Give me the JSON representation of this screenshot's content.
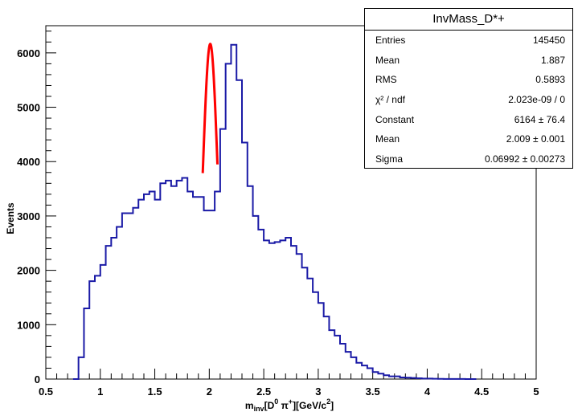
{
  "chart_data": {
    "type": "histogram",
    "title": "",
    "xlabel": "m_inv[D^0 π^+][GeV/c^2]",
    "xlabel_parts": {
      "m": "m",
      "inv": "inv",
      "bracket_open": "[D",
      "d_sup": "0",
      "pi": " π",
      "pi_sup": "+",
      "rest": "][GeV/c",
      "c_sup": "2",
      "close": "]"
    },
    "ylabel": "Events",
    "xlim": [
      0.5,
      5
    ],
    "ylim": [
      0,
      6500
    ],
    "x_ticks": [
      0.5,
      1,
      1.5,
      2,
      2.5,
      3,
      3.5,
      4,
      4.5,
      5
    ],
    "x_tick_labels": [
      "0.5",
      "1",
      "1.5",
      "2",
      "2.5",
      "3",
      "3.5",
      "4",
      "4.5",
      "5"
    ],
    "y_ticks": [
      0,
      1000,
      2000,
      3000,
      4000,
      5000,
      6000
    ],
    "y_tick_labels": [
      "0",
      "1000",
      "2000",
      "3000",
      "4000",
      "5000",
      "6000"
    ],
    "histogram": {
      "name": "InvMass_D*+",
      "color": "#1a1aa6",
      "bin_width": 0.05,
      "first_bin_low": 0.75,
      "counts": [
        0,
        400,
        1300,
        1800,
        1900,
        2100,
        2450,
        2600,
        2800,
        3050,
        3050,
        3150,
        3300,
        3400,
        3450,
        3300,
        3600,
        3650,
        3550,
        3650,
        3700,
        3450,
        3350,
        3350,
        3100,
        3100,
        3450,
        4600,
        5800,
        6150,
        5500,
        4350,
        3550,
        3000,
        2750,
        2550,
        2500,
        2520,
        2550,
        2600,
        2450,
        2300,
        2050,
        1850,
        1600,
        1400,
        1150,
        900,
        800,
        650,
        500,
        400,
        300,
        250,
        200,
        130,
        100,
        70,
        50,
        50,
        30,
        25,
        20,
        15,
        10,
        10,
        5,
        3,
        2,
        2,
        1,
        1,
        0,
        0
      ]
    },
    "fit": {
      "type": "gaussian",
      "color": "#ff0000",
      "constant": 6164,
      "mean": 2.009,
      "sigma": 0.06992,
      "range": [
        1.94,
        2.075
      ]
    }
  },
  "stats": {
    "title": "InvMass_D*+",
    "rows": [
      {
        "key": "Entries",
        "value": "145450"
      },
      {
        "key": "Mean",
        "value": "1.887"
      },
      {
        "key": "RMS",
        "value": "0.5893"
      },
      {
        "key": "χ² / ndf",
        "value": "2.023e-09 / 0"
      },
      {
        "key": "Constant",
        "value": "6164  ± 76.4"
      },
      {
        "key": "Mean",
        "value": "2.009  ± 0.001"
      },
      {
        "key": "Sigma",
        "value": "0.06992  ± 0.00273"
      }
    ]
  }
}
